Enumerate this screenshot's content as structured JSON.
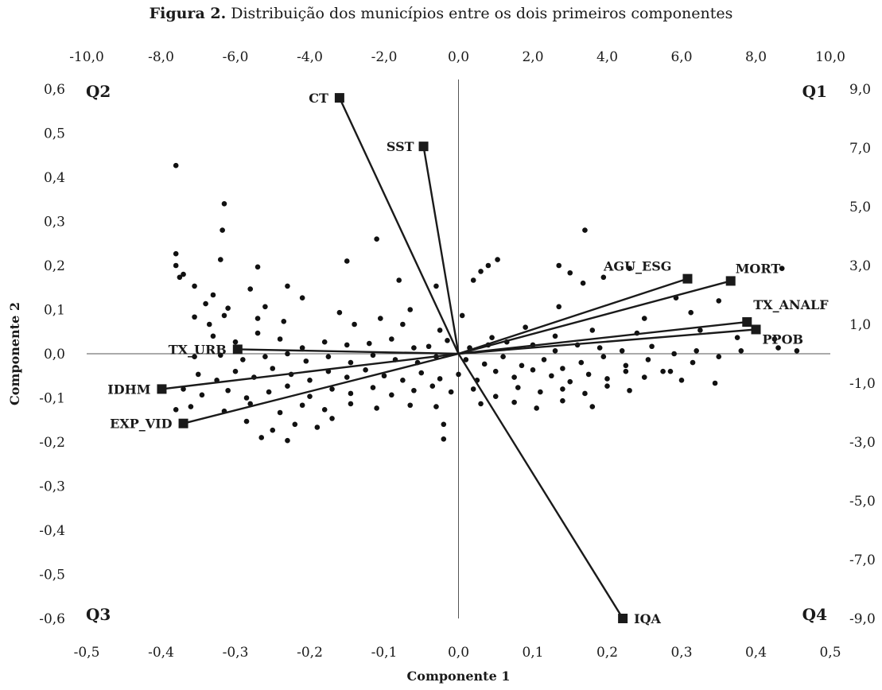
{
  "title_bold": "Figura 2.",
  "title_rest": " Distribuição dos municípios entre os dois primeiros componentes",
  "chart_data": {
    "type": "scatter",
    "title": "Figura 2. Distribuição dos municípios entre os dois primeiros componentes",
    "xlabel": "Componente 1",
    "ylabel": "Componente 2",
    "xlim": [
      -0.5,
      0.5
    ],
    "ylim": [
      -0.6,
      0.6
    ],
    "x2lim": [
      -10,
      10
    ],
    "y2lim": [
      -9,
      9
    ],
    "x_ticks": [
      "-0,5",
      "-0,4",
      "-0,3",
      "-0,2",
      "-0,1",
      "0,0",
      "0,1",
      "0,2",
      "0,3",
      "0,4",
      "0,5"
    ],
    "y_ticks": [
      "0,6",
      "0,5",
      "0,4",
      "0,3",
      "0,2",
      "0,1",
      "0,0",
      "-0,1",
      "-0,2",
      "-0,3",
      "-0,4",
      "-0,5",
      "-0,6"
    ],
    "x2_ticks": [
      "-10,0",
      "-8,0",
      "-6,0",
      "-4,0",
      "-2,0",
      "0,0",
      "2,0",
      "4,0",
      "6,0",
      "8,0",
      "10,0"
    ],
    "y2_ticks": [
      "9,0",
      "7,0",
      "5,0",
      "3,0",
      "1,0",
      "-1,0",
      "-3,0",
      "-5,0",
      "-7,0",
      "-9,0"
    ],
    "quadrants": [
      "Q1",
      "Q2",
      "Q3",
      "Q4"
    ],
    "loadings": [
      {
        "name": "CT",
        "x": -0.16,
        "y": 0.58
      },
      {
        "name": "SST",
        "x": -0.047,
        "y": 0.47
      },
      {
        "name": "AGU_ESG",
        "x": 0.308,
        "y": 0.17
      },
      {
        "name": "MORT",
        "x": 0.366,
        "y": 0.165
      },
      {
        "name": "TX_ANALF",
        "x": 0.388,
        "y": 0.072
      },
      {
        "name": "PPOB",
        "x": 0.4,
        "y": 0.055
      },
      {
        "name": "TX_URB",
        "x": -0.297,
        "y": 0.01
      },
      {
        "name": "IDHM",
        "x": -0.399,
        "y": -0.08
      },
      {
        "name": "EXP_VID",
        "x": -0.37,
        "y": -0.158
      },
      {
        "name": "IQA",
        "x": 0.221,
        "y": -0.6
      }
    ],
    "scores_axis": "secondary",
    "scores": [
      [
        -7.6,
        6.4
      ],
      [
        -6.3,
        5.1
      ],
      [
        -6.35,
        4.2
      ],
      [
        -2.2,
        3.9
      ],
      [
        3.4,
        4.2
      ],
      [
        -7.6,
        3.0
      ],
      [
        -7.6,
        3.4
      ],
      [
        -7.5,
        2.6
      ],
      [
        -7.4,
        2.7
      ],
      [
        -6.4,
        3.2
      ],
      [
        -5.4,
        2.95
      ],
      [
        -3.0,
        3.15
      ],
      [
        -1.6,
        2.5
      ],
      [
        0.8,
        3.0
      ],
      [
        1.05,
        3.2
      ],
      [
        2.7,
        3.0
      ],
      [
        3.0,
        2.75
      ],
      [
        3.9,
        2.6
      ],
      [
        4.6,
        2.9
      ],
      [
        7.0,
        1.8
      ],
      [
        8.7,
        2.9
      ],
      [
        6.25,
        1.4
      ],
      [
        -7.1,
        2.3
      ],
      [
        -6.6,
        2.0
      ],
      [
        -5.6,
        2.2
      ],
      [
        -4.6,
        2.3
      ],
      [
        -4.2,
        1.9
      ],
      [
        -1.3,
        1.5
      ],
      [
        -0.6,
        2.3
      ],
      [
        0.4,
        2.5
      ],
      [
        0.6,
        2.8
      ],
      [
        2.7,
        1.6
      ],
      [
        3.35,
        2.4
      ],
      [
        5.0,
        1.2
      ],
      [
        5.85,
        1.9
      ],
      [
        -6.8,
        1.7
      ],
      [
        -6.2,
        1.55
      ],
      [
        -7.1,
        1.25
      ],
      [
        -6.7,
        1.0
      ],
      [
        -6.3,
        1.3
      ],
      [
        -5.2,
        1.6
      ],
      [
        -5.4,
        1.2
      ],
      [
        -4.7,
        1.1
      ],
      [
        -3.2,
        1.4
      ],
      [
        -2.8,
        1.0
      ],
      [
        -2.1,
        1.2
      ],
      [
        -1.5,
        1.0
      ],
      [
        -0.5,
        0.8
      ],
      [
        0.1,
        1.3
      ],
      [
        0.9,
        0.55
      ],
      [
        1.8,
        0.9
      ],
      [
        2.6,
        0.6
      ],
      [
        3.6,
        0.8
      ],
      [
        4.8,
        0.7
      ],
      [
        6.5,
        0.8
      ],
      [
        7.5,
        0.55
      ],
      [
        8.5,
        0.5
      ],
      [
        -6.6,
        0.6
      ],
      [
        -6.0,
        0.4
      ],
      [
        -5.4,
        0.7
      ],
      [
        -4.8,
        0.5
      ],
      [
        -4.2,
        0.2
      ],
      [
        -3.6,
        0.4
      ],
      [
        -3.0,
        0.3
      ],
      [
        -2.4,
        0.35
      ],
      [
        -1.8,
        0.5
      ],
      [
        -1.2,
        0.2
      ],
      [
        -0.8,
        0.25
      ],
      [
        -0.3,
        0.45
      ],
      [
        0.3,
        0.2
      ],
      [
        0.8,
        0.3
      ],
      [
        1.3,
        0.4
      ],
      [
        2.0,
        0.3
      ],
      [
        2.6,
        0.1
      ],
      [
        3.2,
        0.3
      ],
      [
        3.8,
        0.2
      ],
      [
        4.4,
        0.1
      ],
      [
        5.2,
        0.25
      ],
      [
        5.8,
        0.0
      ],
      [
        6.4,
        0.1
      ],
      [
        7.0,
        -0.1
      ],
      [
        7.6,
        0.1
      ],
      [
        8.6,
        0.2
      ],
      [
        9.1,
        0.1
      ],
      [
        -7.1,
        -0.1
      ],
      [
        -6.4,
        -0.05
      ],
      [
        -5.8,
        -0.2
      ],
      [
        -5.2,
        -0.1
      ],
      [
        -4.6,
        0.0
      ],
      [
        -4.1,
        -0.25
      ],
      [
        -3.5,
        -0.1
      ],
      [
        -2.9,
        -0.3
      ],
      [
        -2.3,
        -0.05
      ],
      [
        -1.7,
        -0.2
      ],
      [
        -1.1,
        -0.3
      ],
      [
        -0.6,
        -0.1
      ],
      [
        0.2,
        -0.2
      ],
      [
        0.7,
        -0.35
      ],
      [
        1.2,
        -0.1
      ],
      [
        1.7,
        -0.4
      ],
      [
        2.3,
        -0.2
      ],
      [
        2.8,
        -0.5
      ],
      [
        3.3,
        -0.3
      ],
      [
        3.9,
        -0.1
      ],
      [
        4.5,
        -0.4
      ],
      [
        5.1,
        -0.2
      ],
      [
        5.7,
        -0.6
      ],
      [
        6.3,
        -0.3
      ],
      [
        6.9,
        -1.0
      ],
      [
        -7.0,
        -0.7
      ],
      [
        -6.5,
        -0.9
      ],
      [
        -6.0,
        -0.6
      ],
      [
        -5.5,
        -0.8
      ],
      [
        -5.0,
        -0.5
      ],
      [
        -4.5,
        -0.7
      ],
      [
        -4.0,
        -0.9
      ],
      [
        -3.5,
        -0.6
      ],
      [
        -3.0,
        -0.8
      ],
      [
        -2.5,
        -0.55
      ],
      [
        -2.0,
        -0.75
      ],
      [
        -1.5,
        -0.9
      ],
      [
        -1.0,
        -0.65
      ],
      [
        -0.5,
        -0.85
      ],
      [
        0.0,
        -0.7
      ],
      [
        0.5,
        -0.9
      ],
      [
        1.0,
        -0.6
      ],
      [
        1.5,
        -0.8
      ],
      [
        2.0,
        -0.55
      ],
      [
        2.5,
        -0.75
      ],
      [
        3.0,
        -0.95
      ],
      [
        3.5,
        -0.7
      ],
      [
        4.0,
        -0.85
      ],
      [
        4.5,
        -0.6
      ],
      [
        5.0,
        -0.8
      ],
      [
        5.5,
        -0.6
      ],
      [
        6.0,
        -0.9
      ],
      [
        -7.4,
        -1.2
      ],
      [
        -6.9,
        -1.4
      ],
      [
        -6.2,
        -1.25
      ],
      [
        -5.7,
        -1.5
      ],
      [
        -5.1,
        -1.3
      ],
      [
        -4.6,
        -1.1
      ],
      [
        -4.0,
        -1.45
      ],
      [
        -3.4,
        -1.2
      ],
      [
        -2.9,
        -1.35
      ],
      [
        -2.3,
        -1.15
      ],
      [
        -1.8,
        -1.4
      ],
      [
        -1.2,
        -1.25
      ],
      [
        -0.7,
        -1.1
      ],
      [
        -0.2,
        -1.3
      ],
      [
        0.4,
        -1.2
      ],
      [
        1.0,
        -1.45
      ],
      [
        1.6,
        -1.15
      ],
      [
        2.2,
        -1.3
      ],
      [
        2.8,
        -1.2
      ],
      [
        3.4,
        -1.35
      ],
      [
        4.0,
        -1.1
      ],
      [
        4.6,
        -1.25
      ],
      [
        -7.6,
        -1.9
      ],
      [
        -7.2,
        -1.8
      ],
      [
        -6.3,
        -1.95
      ],
      [
        -5.6,
        -1.7
      ],
      [
        -4.8,
        -2.0
      ],
      [
        -4.2,
        -1.75
      ],
      [
        -3.6,
        -1.9
      ],
      [
        -2.9,
        -1.7
      ],
      [
        -2.2,
        -1.85
      ],
      [
        -1.3,
        -1.75
      ],
      [
        -0.6,
        -1.8
      ],
      [
        0.6,
        -1.7
      ],
      [
        1.5,
        -1.65
      ],
      [
        2.1,
        -1.85
      ],
      [
        2.8,
        -1.6
      ],
      [
        3.6,
        -1.8
      ],
      [
        -5.7,
        -2.3
      ],
      [
        -5.0,
        -2.6
      ],
      [
        -4.4,
        -2.4
      ],
      [
        -3.8,
        -2.5
      ],
      [
        -5.3,
        -2.85
      ],
      [
        -4.6,
        -2.95
      ],
      [
        -3.4,
        -2.2
      ],
      [
        -0.4,
        -2.4
      ],
      [
        -0.4,
        -2.9
      ]
    ]
  }
}
